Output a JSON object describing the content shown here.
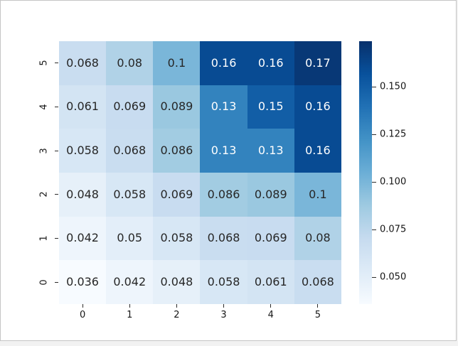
{
  "window": {
    "background": "#f2f2f2",
    "canvas_background": "#ffffff",
    "border_color": "#c5c5c5"
  },
  "chart_data": {
    "type": "heatmap",
    "title": "",
    "xlabel": "",
    "ylabel": "",
    "grid": false,
    "x_tick_labels": [
      "0",
      "1",
      "2",
      "3",
      "4",
      "5"
    ],
    "y_tick_labels_top_to_bottom": [
      "5",
      "4",
      "3",
      "2",
      "1",
      "0"
    ],
    "rows_top_to_bottom": [
      [
        0.068,
        0.08,
        0.1,
        0.16,
        0.16,
        0.17
      ],
      [
        0.061,
        0.069,
        0.089,
        0.13,
        0.15,
        0.16
      ],
      [
        0.058,
        0.068,
        0.086,
        0.13,
        0.13,
        0.16
      ],
      [
        0.048,
        0.058,
        0.069,
        0.086,
        0.089,
        0.1
      ],
      [
        0.042,
        0.05,
        0.058,
        0.068,
        0.069,
        0.08
      ],
      [
        0.036,
        0.042,
        0.048,
        0.058,
        0.061,
        0.068
      ]
    ],
    "annotations_shown": true,
    "annotation_colors": {
      "dark": "#262626",
      "light": "#ffffff"
    },
    "colormap": {
      "name": "Blues",
      "stops": [
        "#f7fbff",
        "#deebf7",
        "#c6dbef",
        "#9ecae1",
        "#6baed6",
        "#4292c6",
        "#2171b5",
        "#08519c",
        "#08306b"
      ]
    },
    "scale": {
      "vmin": 0.036,
      "vmax": 0.174
    },
    "colorbar": {
      "position": "right",
      "tick_values": [
        0.15,
        0.125,
        0.1,
        0.075,
        0.05
      ],
      "tick_labels": [
        "0.150",
        "0.125",
        "0.100",
        "0.075",
        "0.050"
      ]
    }
  }
}
